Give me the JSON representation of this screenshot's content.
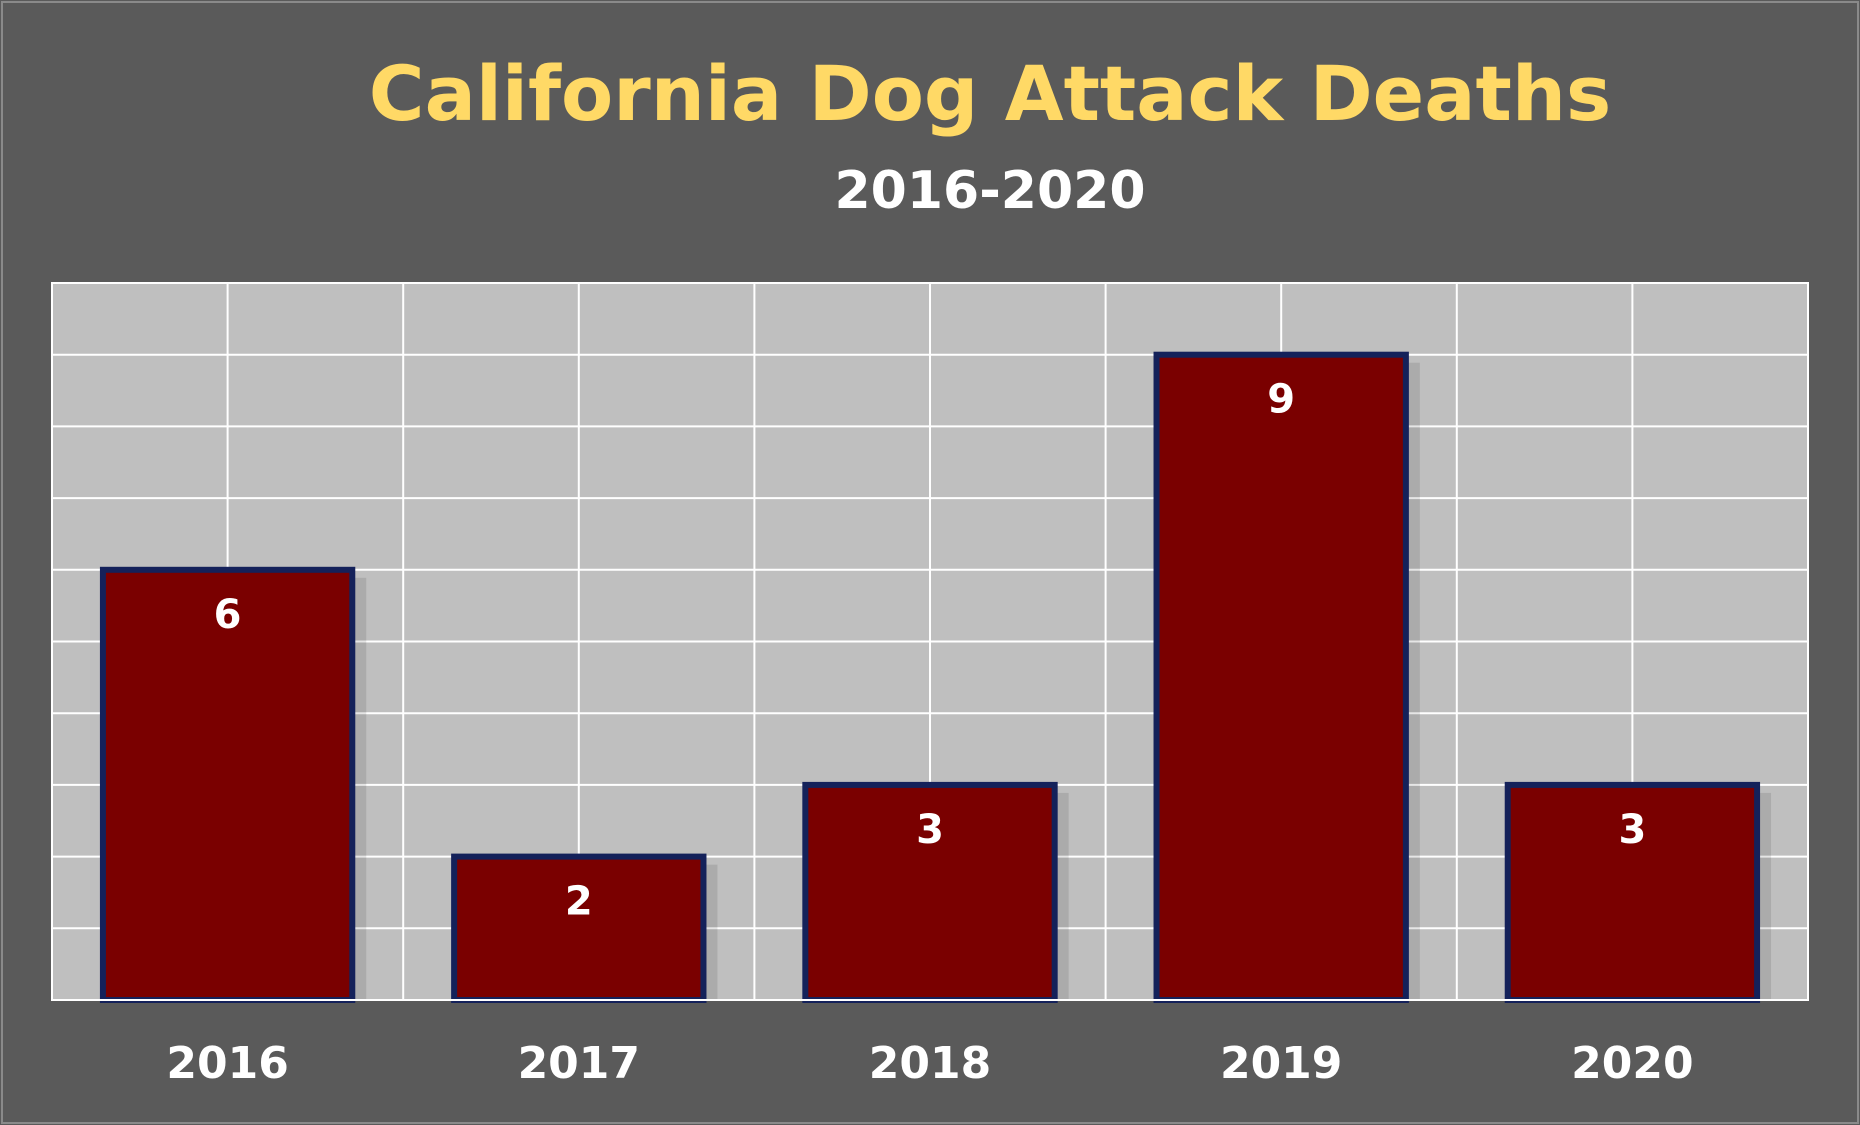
{
  "chart_data": {
    "type": "bar",
    "title": "California Dog Attack Deaths",
    "subtitle": "2016-2020",
    "categories": [
      "2016",
      "2017",
      "2018",
      "2019",
      "2020"
    ],
    "values": [
      6,
      2,
      3,
      9,
      3
    ],
    "ylim": [
      0,
      10
    ],
    "grid": true,
    "legend": "none",
    "colors": {
      "background": "#5a5a5a",
      "plot_area": "#bfbfbf",
      "gridline": "#ffffff",
      "bar_fill": "#7a0000",
      "bar_border": "#14215a",
      "title": "#ffd966",
      "subtitle": "#ffffff",
      "labels": "#ffffff"
    }
  }
}
